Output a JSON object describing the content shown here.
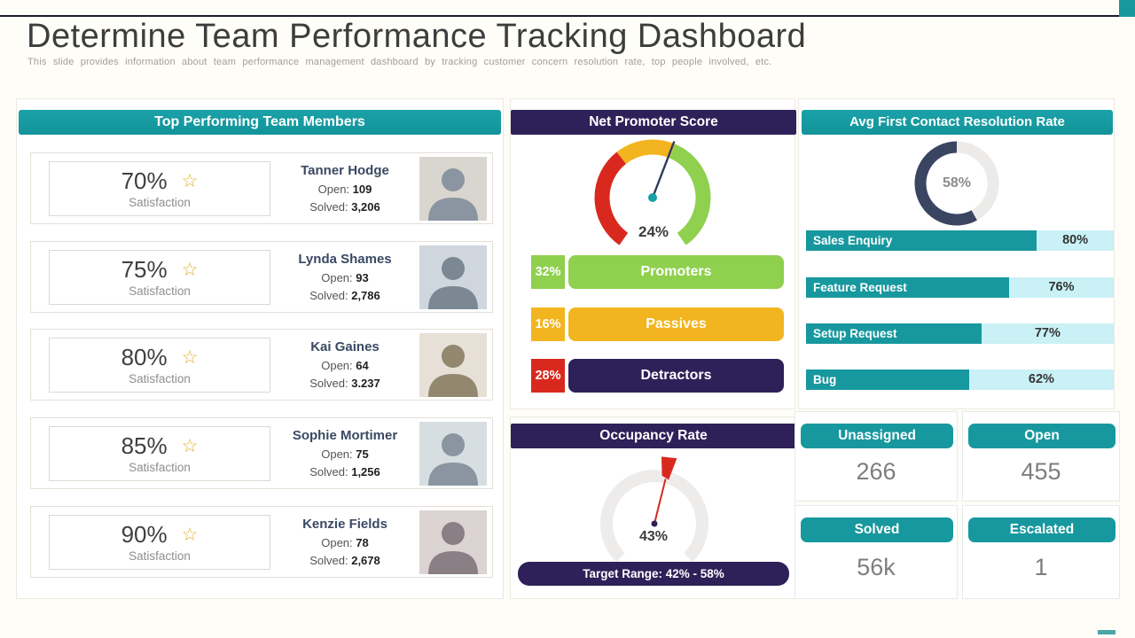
{
  "slide": {
    "title": "Determine Team Performance Tracking Dashboard",
    "subtitle": "This slide provides information about team performance management dashboard by tracking customer concern resolution rate, top people involved, etc."
  },
  "accents": {
    "teal": "#17989e",
    "navy": "#2e2159",
    "green": "#8fd04e",
    "yellow": "#f2b51f",
    "red": "#d9291e",
    "light_cyan": "#c9f1f6",
    "donut_dark": "#3a4562"
  },
  "team_panel": {
    "header": "Top Performing Team Members",
    "members": [
      {
        "percent": "70%",
        "label": "Satisfaction",
        "name": "Tanner Hodge",
        "open_label": "Open:",
        "open": "109",
        "solved_label": "Solved:",
        "solved": "3,206"
      },
      {
        "percent": "75%",
        "label": "Satisfaction",
        "name": "Lynda Shames",
        "open_label": "Open:",
        "open": "93",
        "solved_label": "Solved:",
        "solved": "2,786"
      },
      {
        "percent": "80%",
        "label": "Satisfaction",
        "name": "Kai Gaines",
        "open_label": "Open:",
        "open": "64",
        "solved_label": "Solved:",
        "solved": "3.237"
      },
      {
        "percent": "85%",
        "label": "Satisfaction",
        "name": "Sophie Mortimer",
        "open_label": "Open:",
        "open": "75",
        "solved_label": "Solved:",
        "solved": "1,256"
      },
      {
        "percent": "90%",
        "label": "Satisfaction",
        "name": "Kenzie Fields",
        "open_label": "Open:",
        "open": "78",
        "solved_label": "Solved:",
        "solved": "2,678"
      }
    ]
  },
  "nps_panel": {
    "header": "Net Promoter Score",
    "gauge_value": "24%",
    "rows": [
      {
        "value": "32%",
        "label": "Promoters"
      },
      {
        "value": "16%",
        "label": "Passives"
      },
      {
        "value": "28%",
        "label": "Detractors"
      }
    ]
  },
  "occupancy_panel": {
    "header": "Occupancy Rate",
    "gauge_value": "43%",
    "target": "Target Range: 42% - 58%"
  },
  "resolution_panel": {
    "header": "Avg First Contact Resolution Rate",
    "donut_value": "58%",
    "bars": [
      {
        "label": "Sales Enquiry",
        "value": "80%",
        "fill": 75
      },
      {
        "label": "Feature Request",
        "value": "76%",
        "fill": 66
      },
      {
        "label": "Setup Request",
        "value": "77%",
        "fill": 57
      },
      {
        "label": "Bug",
        "value": "62%",
        "fill": 53
      }
    ]
  },
  "kpis": [
    {
      "label": "Unassigned",
      "value": "266"
    },
    {
      "label": "Open",
      "value": "455"
    },
    {
      "label": "Solved",
      "value": "56k"
    },
    {
      "label": "Escalated",
      "value": "1"
    }
  ],
  "chart_data": [
    {
      "type": "gauge",
      "title": "Net Promoter Score",
      "value": 24,
      "value_label": "24%",
      "start_deg": -145,
      "sweep_deg": 290,
      "needle_angle_deg": 21,
      "needle_color": "#2f3b5c",
      "hub_color": "#17a0a6",
      "segments": [
        {
          "label": "Detractors",
          "value": 28,
          "color": "#d9291e"
        },
        {
          "label": "Passives",
          "value": 16,
          "color": "#f2b51f"
        },
        {
          "label": "Promoters",
          "value": 32,
          "color": "#8fd04e"
        }
      ]
    },
    {
      "type": "gauge",
      "title": "Occupancy Rate",
      "value": 43,
      "value_label": "43%",
      "target_range": "42% - 58%",
      "start_deg": -135,
      "sweep_deg": 270,
      "needle_angle_deg": 14,
      "track_color": "#eeeceb",
      "needle_color": "#d8291f",
      "hub_color": "#2e2159"
    },
    {
      "type": "donut",
      "title": "Avg First Contact Resolution Rate",
      "value": 58,
      "value_label": "58%",
      "direction": "counterclockwise",
      "color": "#3a4562",
      "track_color": "#edebe9"
    },
    {
      "type": "bar",
      "title": "Avg First Contact Resolution Rate",
      "categories": [
        "Sales Enquiry",
        "Feature Request",
        "Setup Request",
        "Bug"
      ],
      "values": [
        80,
        76,
        77,
        62
      ],
      "unit": "%",
      "bar_color": "#17989e",
      "track_color": "#c9f1f6"
    },
    {
      "type": "bar",
      "title": "Net Promoter Score Breakdown",
      "categories": [
        "Promoters",
        "Passives",
        "Detractors"
      ],
      "values": [
        32,
        16,
        28
      ],
      "unit": "%",
      "colors": [
        "#8fd04e",
        "#f2b51f",
        "#2e2159"
      ]
    }
  ]
}
